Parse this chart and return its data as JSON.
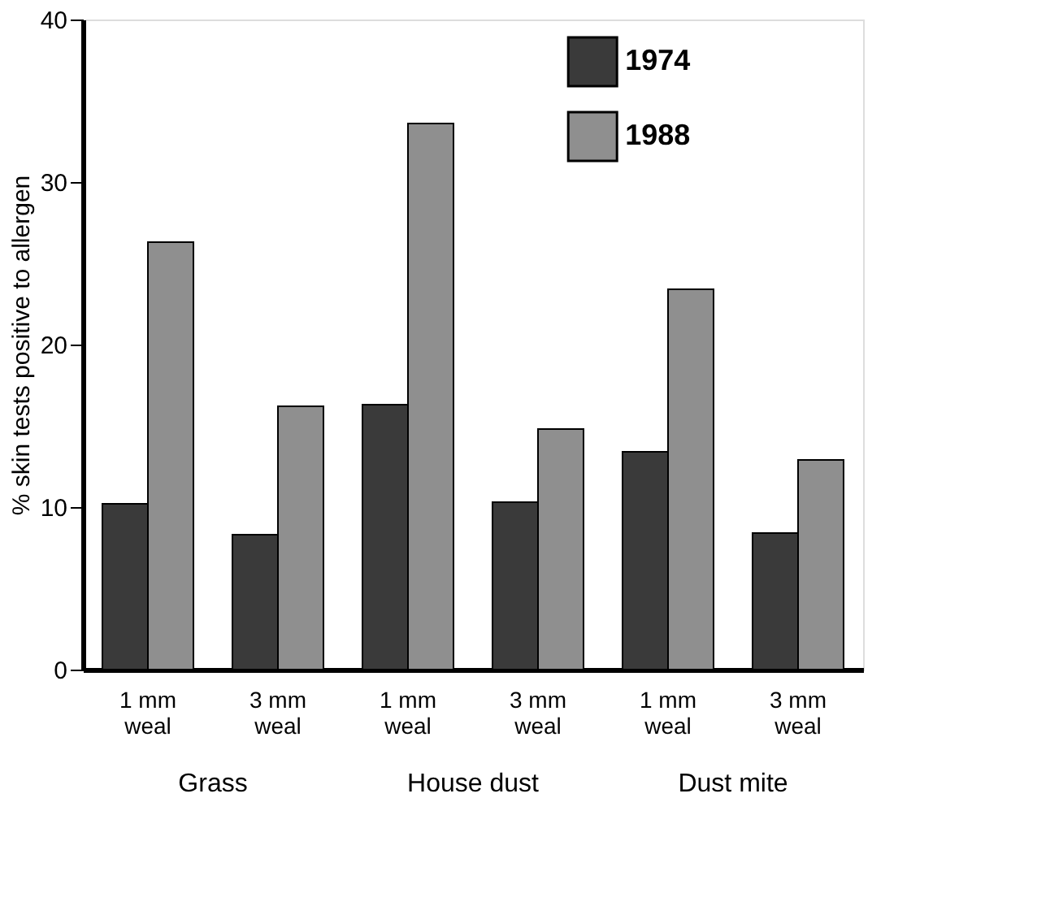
{
  "chart_data": {
    "type": "bar",
    "ylabel": "% skin tests positive to allergen",
    "categories": [
      "1 mm weal",
      "3 mm weal",
      "1 mm weal",
      "3 mm weal",
      "1 mm weal",
      "3 mm weal"
    ],
    "series": [
      {
        "name": "1974",
        "color": "#3a3a3a",
        "values": [
          10.2,
          8.3,
          16.3,
          10.3,
          13.4,
          8.4
        ]
      },
      {
        "name": "1988",
        "color": "#8f8f8f",
        "values": [
          26.3,
          16.2,
          33.6,
          14.8,
          23.4,
          12.9
        ]
      }
    ],
    "ylim": [
      0,
      40
    ],
    "yticks": [
      0,
      10,
      20,
      30,
      40
    ],
    "grid": false,
    "legend": "top right",
    "annotations": [
      "Grass",
      "House dust",
      "Dust mite"
    ]
  }
}
